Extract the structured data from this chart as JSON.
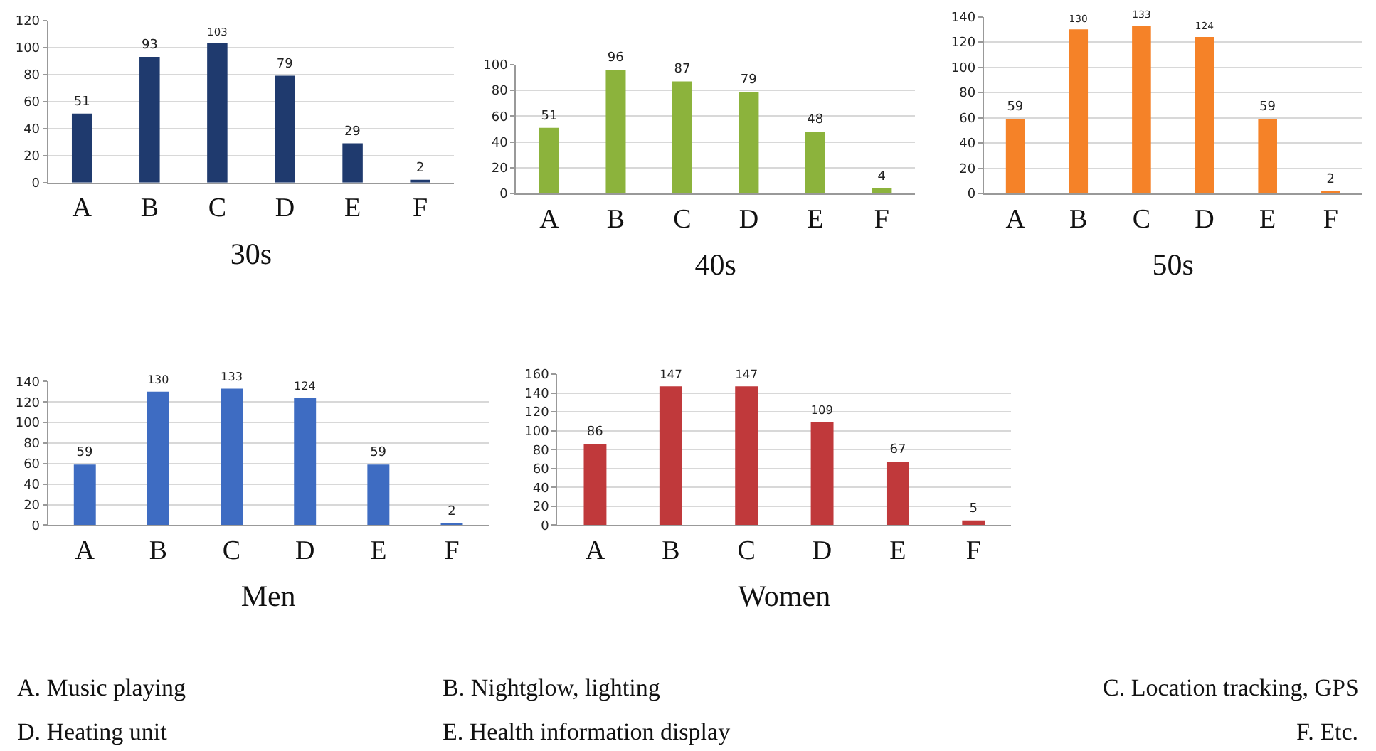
{
  "chart_data": [
    {
      "type": "bar",
      "categories": [
        "A",
        "B",
        "C",
        "D",
        "E",
        "F"
      ],
      "values": [
        51,
        93,
        103,
        79,
        29,
        2
      ],
      "color": "#1f3a6e",
      "ylim": [
        0,
        120
      ],
      "yticks": [
        0,
        20,
        40,
        60,
        80,
        100,
        120
      ],
      "grid": "y",
      "data_labels": true,
      "xlabel": "30s"
    },
    {
      "type": "bar",
      "categories": [
        "A",
        "B",
        "C",
        "D",
        "E",
        "F"
      ],
      "values": [
        51,
        96,
        87,
        79,
        48,
        4
      ],
      "color": "#8cb33c",
      "ylim": [
        0,
        100
      ],
      "yticks": [
        0,
        20,
        40,
        60,
        80,
        100
      ],
      "grid": "y",
      "data_labels": true,
      "xlabel": "40s"
    },
    {
      "type": "bar",
      "categories": [
        "A",
        "B",
        "C",
        "D",
        "E",
        "F"
      ],
      "values": [
        59,
        130,
        133,
        124,
        59,
        2
      ],
      "color": "#f58228",
      "ylim": [
        0,
        140
      ],
      "yticks": [
        0,
        20,
        40,
        60,
        80,
        100,
        120,
        140
      ],
      "grid": "y",
      "data_labels": true,
      "xlabel": "50s"
    },
    {
      "type": "bar",
      "categories": [
        "A",
        "B",
        "C",
        "D",
        "E",
        "F"
      ],
      "values": [
        59,
        130,
        133,
        124,
        59,
        2
      ],
      "color": "#3e6cc2",
      "ylim": [
        0,
        140
      ],
      "yticks": [
        0,
        20,
        40,
        60,
        80,
        100,
        120,
        140
      ],
      "grid": "y",
      "data_labels": true,
      "xlabel": "Men"
    },
    {
      "type": "bar",
      "categories": [
        "A",
        "B",
        "C",
        "D",
        "E",
        "F"
      ],
      "values": [
        86,
        147,
        147,
        109,
        67,
        5
      ],
      "color": "#c0393b",
      "ylim": [
        0,
        160
      ],
      "yticks": [
        0,
        20,
        40,
        60,
        80,
        100,
        120,
        140,
        160
      ],
      "grid": "y",
      "data_labels": true,
      "xlabel": "Women",
      "annotations": [
        "A. Music playing",
        "B. Nightglow, lighting",
        "C. Location tracking, GPS",
        "D. Heating unit",
        "E. Health information display",
        "F. Etc."
      ]
    }
  ]
}
